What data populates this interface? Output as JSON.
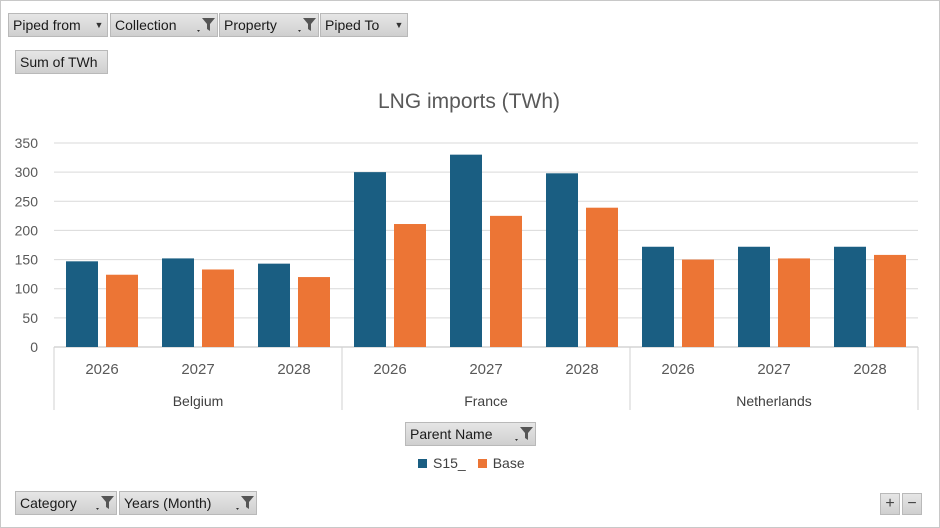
{
  "filters": {
    "piped_from": "Piped from",
    "collection": "Collection",
    "property": "Property",
    "piped_to": "Piped To",
    "sum_of": "Sum of TWh",
    "parent_name": "Parent Name",
    "category": "Category",
    "years": "Years (Month)"
  },
  "zoom": {
    "plus": "+",
    "minus": "−"
  },
  "chart_data": {
    "type": "bar",
    "title": "LNG imports (TWh)",
    "xlabel": "",
    "ylabel": "",
    "ylim": [
      0,
      350
    ],
    "yticks": [
      0,
      50,
      100,
      150,
      200,
      250,
      300,
      350
    ],
    "groups": [
      "Belgium",
      "France",
      "Netherlands"
    ],
    "categories": [
      "2026",
      "2027",
      "2028"
    ],
    "grid": true,
    "legend": "bottom",
    "series": [
      {
        "name": "S15_",
        "color": "#1a5e82",
        "values": [
          [
            147,
            152,
            143
          ],
          [
            300,
            330,
            298
          ],
          [
            172,
            172,
            172
          ]
        ]
      },
      {
        "name": "Base",
        "color": "#ec7535",
        "values": [
          [
            124,
            133,
            120
          ],
          [
            211,
            225,
            239
          ],
          [
            150,
            152,
            158
          ]
        ]
      }
    ]
  }
}
